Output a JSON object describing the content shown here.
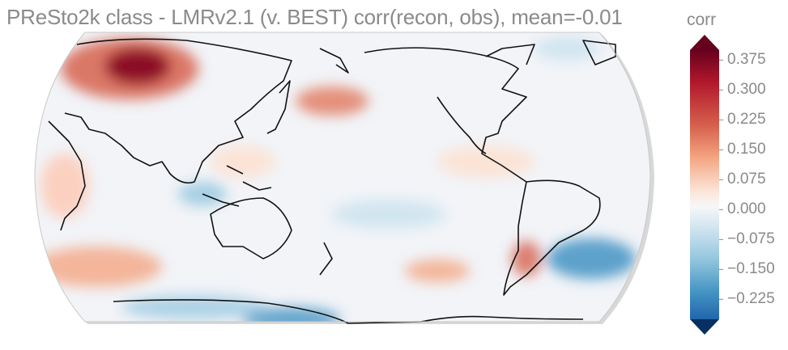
{
  "title": "PReSto2k class - LMRv2.1 (v. BEST) corr(recon, obs), mean=-0.01",
  "colorbar": {
    "label": "corr",
    "ticks": [
      "0.375",
      "0.300",
      "0.225",
      "0.150",
      "0.075",
      "0.000",
      "−0.075",
      "−0.150",
      "−0.225"
    ],
    "tick_values": [
      0.375,
      0.3,
      0.225,
      0.15,
      0.075,
      0.0,
      -0.075,
      -0.15,
      -0.225
    ],
    "range": [
      -0.275,
      0.4
    ],
    "colormap": "RdBu_r",
    "extend": "both",
    "colors": {
      "dark_red": "#67001f",
      "red": "#b2182b",
      "light_red": "#f4a582",
      "white": "#f7f7f7",
      "light_blue": "#92c5de",
      "blue": "#2166ac",
      "dark_blue": "#053061"
    }
  },
  "map": {
    "projection": "Robinson",
    "central_longitude": 180,
    "coastlines": true,
    "statistic": "corr(recon, obs)",
    "global_mean": -0.01
  }
}
